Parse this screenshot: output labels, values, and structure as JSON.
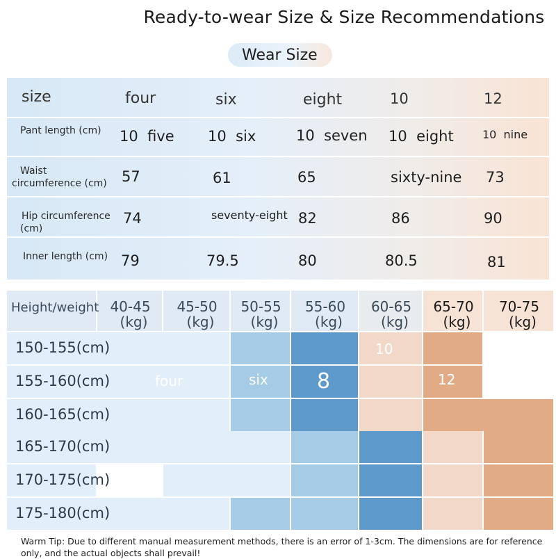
{
  "title": "Ready-to-wear Size & Size Recommendations",
  "wear_size_label": "Wear Size",
  "size_table": {
    "header": [
      "size",
      "four",
      "six",
      "eight",
      "10",
      "12"
    ],
    "rows": [
      {
        "label": "Pant length (cm)",
        "values": [
          "10  five",
          "10  six",
          "10  seven",
          "10  eight",
          "10  nine"
        ]
      },
      {
        "label": "Waist circumference (cm)",
        "label_line1": "Waist",
        "label_line2": "circumference (cm)",
        "values": [
          "57",
          "61",
          "65",
          "sixty-nine",
          "73"
        ]
      },
      {
        "label": "Hip circumference (cm)",
        "label_line1": "Hip circumference",
        "label_line2": "(cm)",
        "values": [
          "74",
          "seventy-eight",
          "82",
          "86",
          "90"
        ]
      },
      {
        "label": "Inner length (cm)",
        "values": [
          "79",
          "79.5",
          "80",
          "80.5",
          "81"
        ]
      }
    ]
  },
  "recommendation_grid": {
    "corner_label": "Height/weight",
    "weight_ranges": [
      "40-45",
      "45-50",
      "50-55",
      "55-60",
      "60-65",
      "65-70",
      "70-75"
    ],
    "weight_unit": "(kg)",
    "height_ranges": [
      "150-155(cm)",
      "155-160(cm)",
      "160-165(cm)",
      "165-170(cm)",
      "170-175(cm)",
      "175-180(cm)"
    ],
    "size_labels": {
      "four": "four",
      "six": "six",
      "eight": "8",
      "ten": "10",
      "twelve": "12"
    },
    "colors": {
      "size_four": "#e2effa",
      "size_six": "#a6cbe6",
      "size_eight": "#5d9acb",
      "size_ten": "#f1d8c9",
      "size_twelve": "#e1ac85",
      "header_bg": "#dfeaf4",
      "row_label_bg": "#e4eff9"
    }
  },
  "warm_tip": "Warm Tip: Due to different manual measurement methods, there is an error of 1-3cm. The dimensions are for reference only, and the actual objects shall prevail!"
}
